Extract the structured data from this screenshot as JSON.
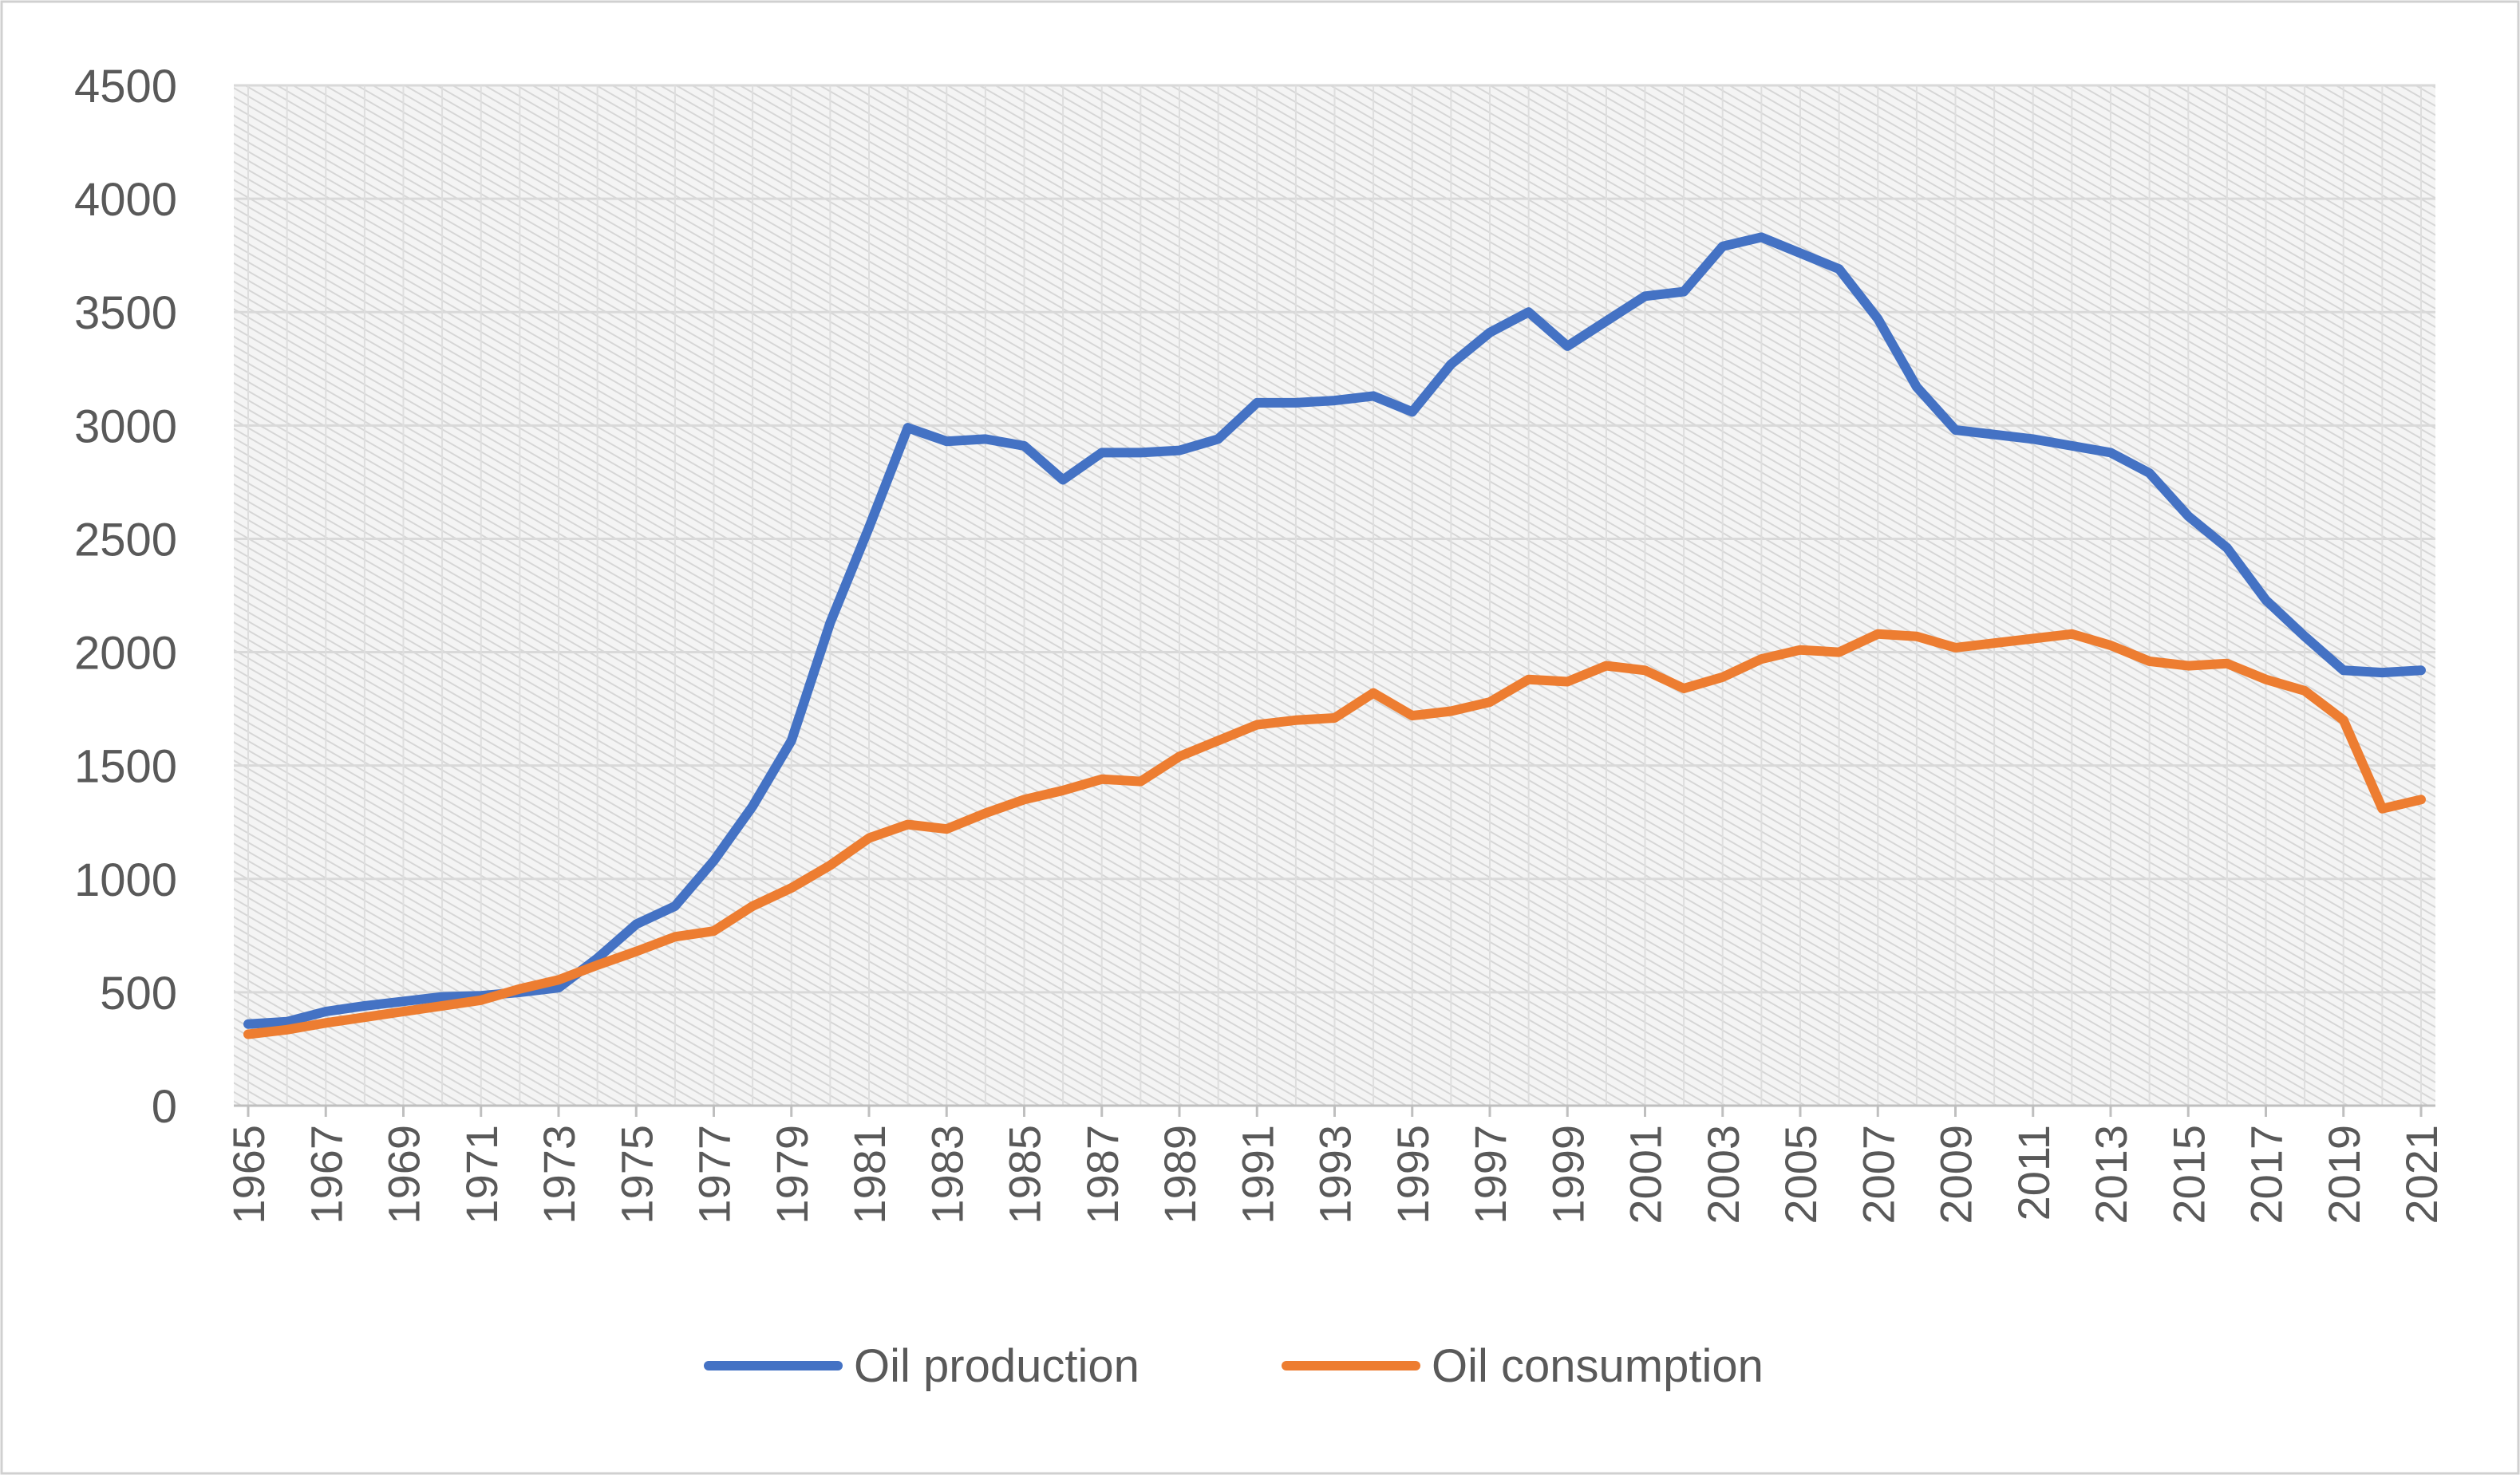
{
  "chart_data": {
    "type": "line",
    "title": "",
    "xlabel": "",
    "ylabel": "",
    "ylim": [
      0,
      4500
    ],
    "yticks": [
      0,
      500,
      1000,
      1500,
      2000,
      2500,
      3000,
      3500,
      4000,
      4500
    ],
    "grid": true,
    "legend_position": "bottom",
    "x": [
      1965,
      1966,
      1967,
      1968,
      1969,
      1970,
      1971,
      1972,
      1973,
      1974,
      1975,
      1976,
      1977,
      1978,
      1979,
      1980,
      1981,
      1982,
      1983,
      1984,
      1985,
      1986,
      1987,
      1988,
      1989,
      1990,
      1991,
      1992,
      1993,
      1994,
      1995,
      1996,
      1997,
      1998,
      1999,
      2000,
      2001,
      2002,
      2003,
      2004,
      2005,
      2006,
      2007,
      2008,
      2009,
      2010,
      2011,
      2012,
      2013,
      2014,
      2015,
      2016,
      2017,
      2018,
      2019,
      2020,
      2021
    ],
    "xtick_labels": [
      "1965",
      "1967",
      "1969",
      "1971",
      "1973",
      "1975",
      "1977",
      "1979",
      "1981",
      "1983",
      "1985",
      "1987",
      "1989",
      "1991",
      "1993",
      "1995",
      "1997",
      "1999",
      "2001",
      "2003",
      "2005",
      "2007",
      "2009",
      "2011",
      "2013",
      "2015",
      "2017",
      "2019",
      "2021"
    ],
    "series": [
      {
        "name": "Oil production",
        "color": "#4472C4",
        "values": [
          360,
          370,
          415,
          440,
          460,
          480,
          485,
          500,
          520,
          650,
          800,
          880,
          1080,
          1320,
          1610,
          2130,
          2550,
          2990,
          2930,
          2940,
          2910,
          2760,
          2880,
          2880,
          2890,
          2940,
          3100,
          3100,
          3110,
          3130,
          3060,
          3270,
          3410,
          3500,
          3350,
          3460,
          3570,
          3590,
          3790,
          3830,
          3760,
          3690,
          3470,
          3170,
          2980,
          2960,
          2940,
          2910,
          2880,
          2790,
          2600,
          2460,
          2230,
          2070,
          1920,
          1910,
          1920
        ]
      },
      {
        "name": "Oil consumption",
        "color": "#ED7D31",
        "values": [
          315,
          335,
          365,
          390,
          415,
          440,
          465,
          515,
          555,
          620,
          680,
          745,
          770,
          880,
          960,
          1060,
          1180,
          1240,
          1220,
          1290,
          1350,
          1390,
          1440,
          1430,
          1540,
          1610,
          1680,
          1700,
          1710,
          1820,
          1720,
          1740,
          1780,
          1880,
          1870,
          1940,
          1920,
          1840,
          1890,
          1970,
          2010,
          2000,
          2080,
          2070,
          2020,
          2040,
          2060,
          2080,
          2030,
          1960,
          1940,
          1950,
          1880,
          1830,
          1700,
          1310,
          1350
        ]
      }
    ]
  }
}
